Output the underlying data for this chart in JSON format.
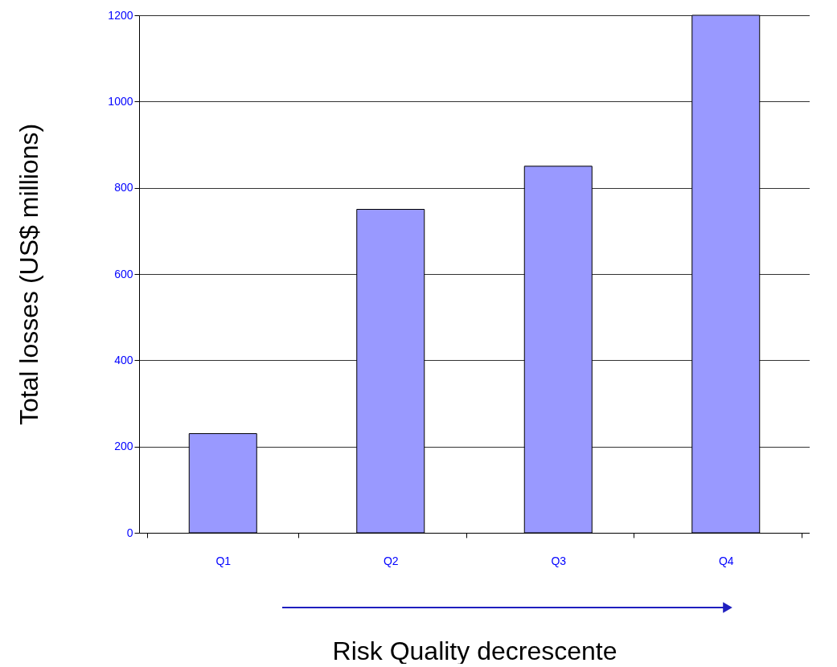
{
  "chart_data": {
    "type": "bar",
    "xlabel": "Risk Quality decrescente",
    "ylabel": "Total losses (US$ millions)",
    "categories": [
      "Q1",
      "Q2",
      "Q3",
      "Q4"
    ],
    "values": [
      230,
      750,
      850,
      1200
    ],
    "color": "#9999ff",
    "ylim": [
      0,
      1200
    ],
    "yticks": [
      0,
      200,
      400,
      600,
      800,
      1000,
      1200
    ],
    "grid": "y"
  }
}
